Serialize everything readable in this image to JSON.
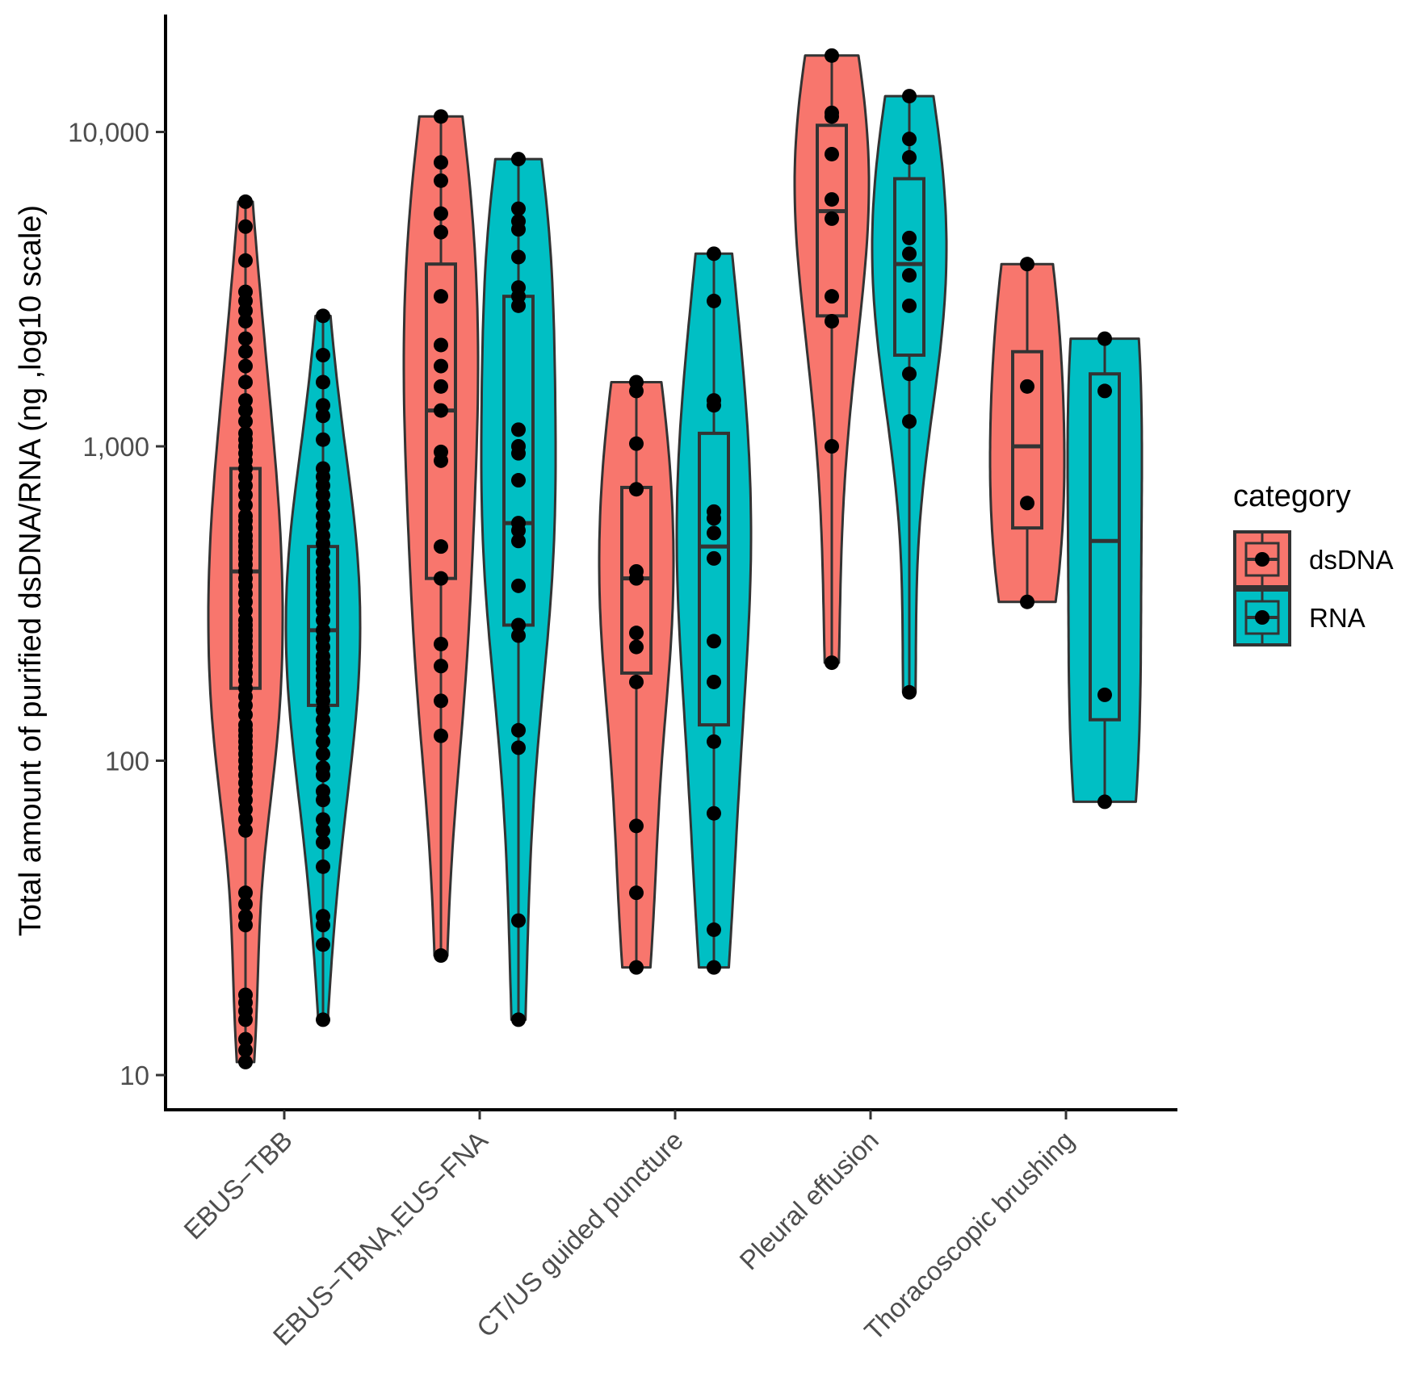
{
  "chart_data": {
    "type": "violin",
    "title": "",
    "xlabel": "",
    "ylabel": "Total amount of purified dsDNA/RNA (ng ,log10 scale)",
    "yscale": "log10",
    "ylim": [
      10,
      25000
    ],
    "y_ticks": [
      {
        "value": 10,
        "label": "10"
      },
      {
        "value": 100,
        "label": "100"
      },
      {
        "value": 1000,
        "label": "1,000"
      },
      {
        "value": 10000,
        "label": "10,000"
      }
    ],
    "categories": [
      "EBUS−TBB",
      "EBUS−TBNA,EUS−FNA",
      "CT/US guided puncture",
      "Pleural effusion",
      "Thoracoscopic brushing"
    ],
    "legend": {
      "title": "category",
      "position": "right",
      "entries": [
        {
          "label": "dsDNA",
          "color": "#F8766D"
        },
        {
          "label": "RNA",
          "color": "#00BFC4"
        }
      ]
    },
    "series": [
      {
        "name": "dsDNA",
        "color": "#F8766D",
        "groups": [
          {
            "category": "EBUS−TBB",
            "min": 11,
            "q1": 170,
            "median": 400,
            "q3": 850,
            "max": 6000,
            "points": [
              11,
              12,
              13,
              15,
              16,
              17,
              18,
              30,
              32,
              35,
              38,
              60,
              65,
              70,
              75,
              80,
              85,
              90,
              95,
              100,
              105,
              110,
              115,
              120,
              125,
              130,
              140,
              150,
              160,
              170,
              180,
              190,
              200,
              210,
              220,
              230,
              240,
              250,
              260,
              270,
              280,
              300,
              320,
              340,
              360,
              380,
              400,
              420,
              440,
              460,
              480,
              500,
              520,
              550,
              580,
              600,
              650,
              700,
              750,
              800,
              850,
              900,
              950,
              1000,
              1050,
              1100,
              1200,
              1300,
              1400,
              1600,
              1800,
              2000,
              2200,
              2500,
              2700,
              2900,
              3100,
              3900,
              5000,
              6000
            ]
          },
          {
            "category": "EBUS−TBNA,EUS−FNA",
            "min": 24,
            "q1": 380,
            "median": 1300,
            "q3": 3800,
            "max": 11200,
            "points": [
              24,
              120,
              155,
              200,
              235,
              380,
              480,
              900,
              960,
              1300,
              1550,
              1800,
              2100,
              3000,
              4800,
              5500,
              7000,
              8000,
              11200
            ]
          },
          {
            "category": "CT/US guided puncture",
            "min": 22,
            "q1": 190,
            "median": 380,
            "q3": 740,
            "max": 1600,
            "points": [
              22,
              38,
              62,
              178,
              230,
              255,
              380,
              400,
              730,
              1020,
              1500,
              1600
            ]
          },
          {
            "category": "Pleural effusion",
            "min": 205,
            "q1": 2600,
            "median": 5600,
            "q3": 10500,
            "max": 17500,
            "points": [
              205,
              1000,
              2500,
              3000,
              5300,
              6100,
              8500,
              11200,
              11500,
              17500
            ]
          },
          {
            "category": "Thoracoscopic brushing",
            "min": 320,
            "q1": 550,
            "median": 1000,
            "q3": 2000,
            "max": 3800,
            "points": [
              320,
              660,
              1550,
              3800
            ]
          }
        ]
      },
      {
        "name": "RNA",
        "color": "#00BFC4",
        "groups": [
          {
            "category": "EBUS−TBB",
            "min": 15,
            "q1": 150,
            "median": 260,
            "q3": 480,
            "max": 2600,
            "points": [
              15,
              26,
              30,
              32,
              46,
              55,
              60,
              65,
              75,
              80,
              90,
              95,
              105,
              115,
              125,
              135,
              145,
              155,
              165,
              175,
              185,
              195,
              205,
              215,
              230,
              245,
              260,
              280,
              300,
              320,
              340,
              360,
              380,
              400,
              430,
              460,
              490,
              520,
              560,
              600,
              650,
              700,
              750,
              800,
              850,
              1050,
              1250,
              1350,
              1600,
              1950,
              2600
            ]
          },
          {
            "category": "EBUS−TBNA,EUS−FNA",
            "min": 15,
            "q1": 270,
            "median": 570,
            "q3": 3000,
            "max": 8200,
            "points": [
              15,
              31,
              110,
              125,
              250,
              270,
              360,
              500,
              540,
              570,
              780,
              950,
              1000,
              1130,
              2800,
              3000,
              3200,
              4000,
              4900,
              5200,
              5700,
              8200
            ]
          },
          {
            "category": "CT/US guided puncture",
            "min": 22,
            "q1": 130,
            "median": 480,
            "q3": 1100,
            "max": 4100,
            "points": [
              22,
              29,
              68,
              115,
              178,
              240,
              440,
              530,
              590,
              620,
              1350,
              1400,
              2900,
              4100
            ]
          },
          {
            "category": "Pleural effusion",
            "min": 165,
            "q1": 1950,
            "median": 3800,
            "q3": 7100,
            "max": 13000,
            "points": [
              165,
              1200,
              1700,
              2800,
              3500,
              4100,
              4600,
              8300,
              9500,
              13000
            ]
          },
          {
            "category": "Thoracoscopic brushing",
            "min": 74,
            "q1": 135,
            "median": 500,
            "q3": 1700,
            "max": 2200,
            "points": [
              74,
              162,
              1500,
              2200
            ]
          }
        ]
      }
    ]
  }
}
